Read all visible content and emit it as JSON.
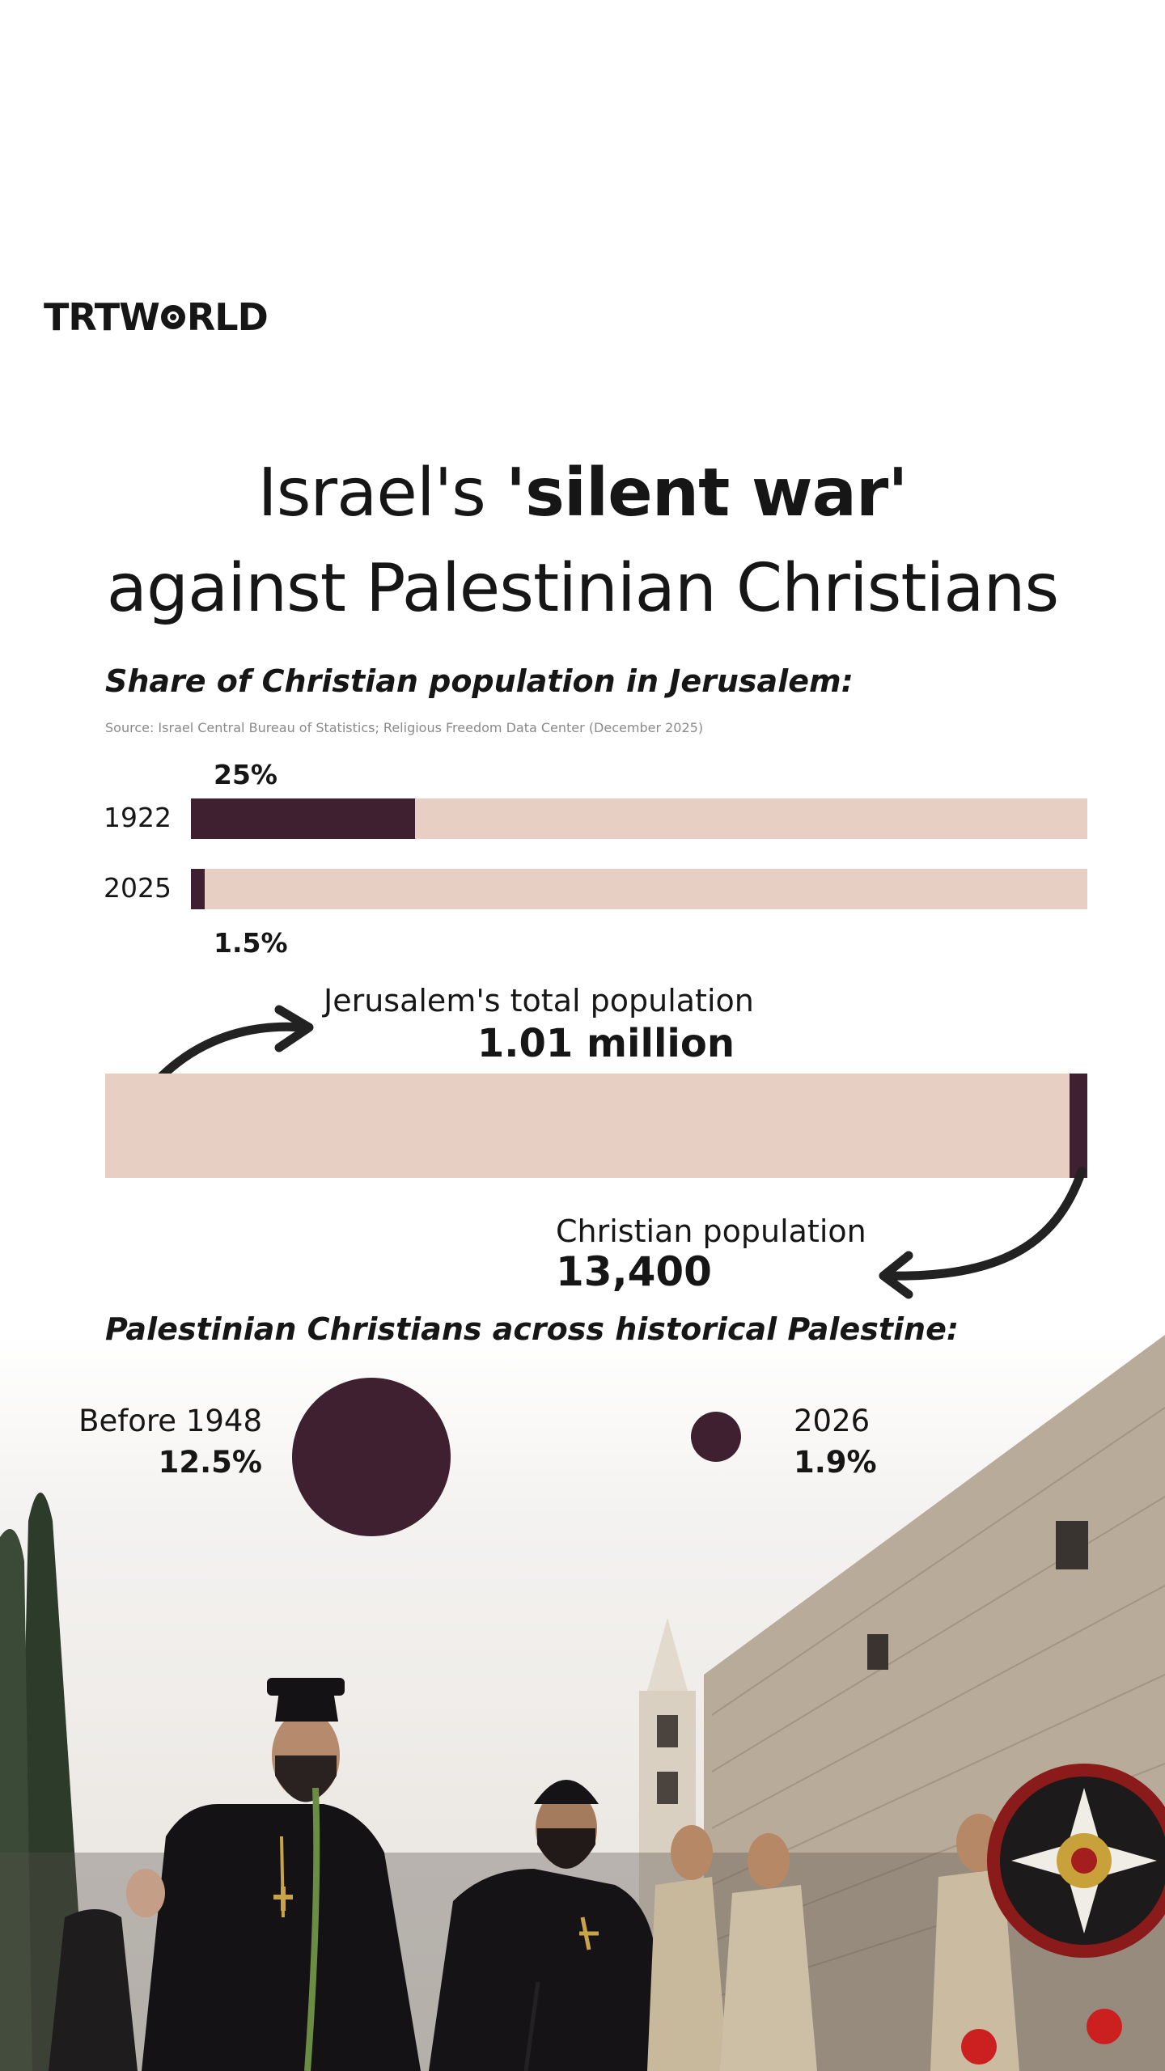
{
  "brand": {
    "logo_text_left": "TRT",
    "logo_text_right": "RLD"
  },
  "title": {
    "line1_regular": "Israel's ",
    "line1_bold": "'silent war'",
    "line2": "against Palestinian Christians"
  },
  "colors": {
    "bar_fill": "#3e2030",
    "bar_track": "#e8cfc4",
    "text": "#161616"
  },
  "chart_data": [
    {
      "type": "bar",
      "orientation": "horizontal",
      "title": "Share of Christian population in Jerusalem:",
      "source": "Source: Israel Central Bureau of Statistics; Religious Freedom Data Center (December 2025)",
      "categories": [
        "1922",
        "2025"
      ],
      "values": [
        25,
        1.5
      ],
      "value_labels": [
        "25%",
        "1.5%"
      ],
      "ylim": [
        0,
        100
      ],
      "unit": "%",
      "grid": false
    },
    {
      "type": "bar",
      "orientation": "horizontal",
      "total_label": "Jerusalem's total population",
      "total_value_label": "1.01 million",
      "total_value": 1010000,
      "part_label": "Christian population",
      "part_value_label": "13,400",
      "part_value": 13400
    },
    {
      "type": "bubble",
      "title": "Palestinian Christians across historical Palestine:",
      "categories": [
        "Before 1948",
        "2026"
      ],
      "values": [
        12.5,
        1.9
      ],
      "value_labels": [
        "12.5%",
        "1.9%"
      ],
      "unit": "%"
    }
  ]
}
